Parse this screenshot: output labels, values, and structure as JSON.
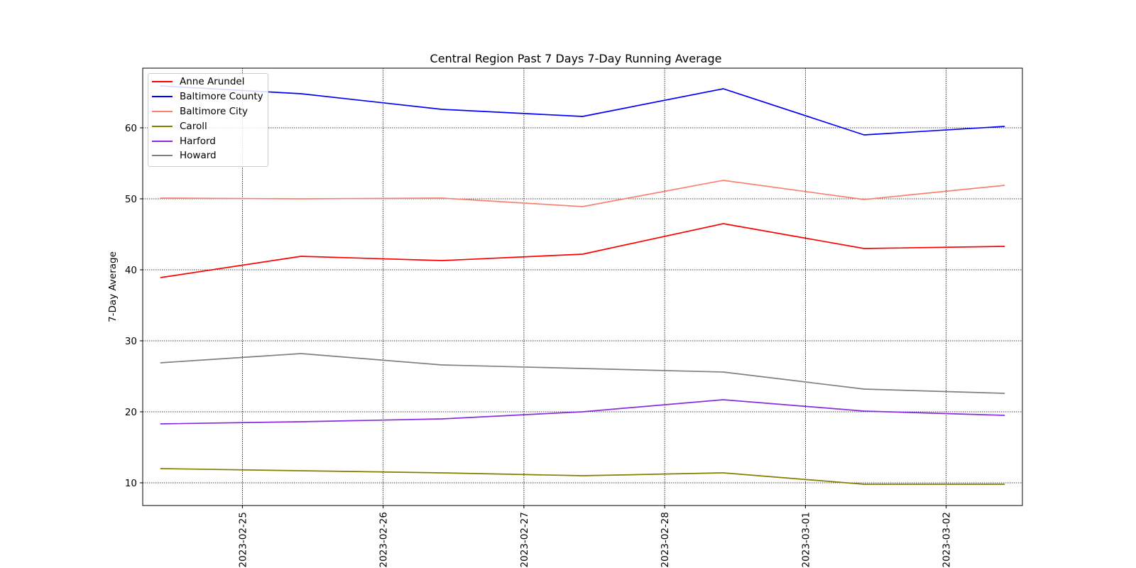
{
  "chart_data": {
    "type": "line",
    "title": "Central Region Past 7 Days 7-Day Running Average",
    "xlabel": "",
    "ylabel": "7-Day Average",
    "x": [
      "2023-02-24 10:00",
      "2023-02-25 10:00",
      "2023-02-26 10:00",
      "2023-02-27 10:00",
      "2023-02-28 10:00",
      "2023-03-01 10:00",
      "2023-03-02 10:00"
    ],
    "xtick_labels": [
      "2023-02-25",
      "2023-02-26",
      "2023-02-27",
      "2023-02-28",
      "2023-03-01",
      "2023-03-02"
    ],
    "xlim": [
      "2023-02-24 07:00",
      "2023-03-02 13:00"
    ],
    "yticks": [
      10,
      20,
      30,
      40,
      50,
      60
    ],
    "ylim": [
      6.8,
      68.4
    ],
    "grid": true,
    "legend_position": "top-left",
    "series": [
      {
        "name": "Anne Arundel",
        "color": "#ff0000",
        "values": [
          38.9,
          41.9,
          41.3,
          42.2,
          46.5,
          43.0,
          43.3
        ]
      },
      {
        "name": "Baltimore County",
        "color": "#0000ff",
        "values": [
          65.9,
          64.8,
          62.6,
          61.6,
          65.5,
          59.0,
          60.2
        ]
      },
      {
        "name": "Baltimore City",
        "color": "#fa8072",
        "values": [
          50.1,
          50.0,
          50.1,
          48.9,
          52.6,
          49.9,
          51.9
        ]
      },
      {
        "name": "Caroll",
        "color": "#808000",
        "values": [
          12.0,
          11.7,
          11.4,
          11.0,
          11.4,
          9.8,
          9.8
        ]
      },
      {
        "name": "Harford",
        "color": "#8a2be2",
        "values": [
          18.3,
          18.6,
          19.0,
          20.0,
          21.7,
          20.1,
          19.5
        ]
      },
      {
        "name": "Howard",
        "color": "#808080",
        "values": [
          26.9,
          28.2,
          26.6,
          26.1,
          25.6,
          23.2,
          22.6
        ]
      }
    ]
  }
}
